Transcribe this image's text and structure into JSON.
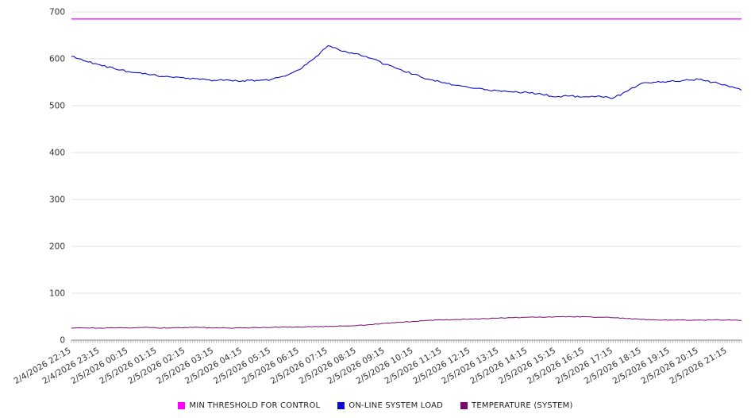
{
  "chart_data": {
    "type": "line",
    "title": "",
    "xlabel": "",
    "ylabel": "",
    "ylim": [
      0,
      700
    ],
    "yticks": [
      0,
      100,
      200,
      300,
      400,
      500,
      600,
      700
    ],
    "grid": true,
    "legend_position": "bottom",
    "background": "#ffffff",
    "axis": {
      "text_color": "#333333",
      "grid_color": "#e0e0e0",
      "tick_color": "#999999",
      "baseline_color": "#888888"
    },
    "sample_interval_minutes": 30,
    "x_tick_labels": [
      "2/4/2026 22:15",
      "2/4/2026 23:15",
      "2/5/2026 00:15",
      "2/5/2026 01:15",
      "2/5/2026 02:15",
      "2/5/2026 03:15",
      "2/5/2026 04:15",
      "2/5/2026 05:15",
      "2/5/2026 06:15",
      "2/5/2026 07:15",
      "2/5/2026 08:15",
      "2/5/2026 09:15",
      "2/5/2026 10:15",
      "2/5/2026 11:15",
      "2/5/2026 12:15",
      "2/5/2026 13:15",
      "2/5/2026 14:15",
      "2/5/2026 15:15",
      "2/5/2026 16:15",
      "2/5/2026 17:15",
      "2/5/2026 18:15",
      "2/5/2026 19:15",
      "2/5/2026 20:15",
      "2/5/2026 21:15"
    ],
    "series": [
      {
        "name": "MIN THRESHOLD FOR CONTROL",
        "color": "#ff00ff",
        "values": [
          685,
          685
        ]
      },
      {
        "name": "ON-LINE SYSTEM LOAD",
        "color": "#0b0bd0",
        "values": [
          605,
          595,
          587,
          579,
          573,
          568,
          564,
          561,
          558,
          556,
          554,
          555,
          553,
          554,
          556,
          563,
          577,
          600,
          628,
          616,
          611,
          601,
          588,
          578,
          567,
          557,
          549,
          543,
          538,
          534,
          532,
          529,
          528,
          524,
          519,
          521,
          519,
          521,
          516,
          531,
          548,
          550,
          552,
          554,
          556,
          550,
          543,
          533
        ]
      },
      {
        "name": "TEMPERATURE (SYSTEM)",
        "color": "#770a6e",
        "values": [
          26,
          26,
          26,
          26,
          26,
          27,
          26,
          26,
          27,
          27,
          26,
          26,
          26,
          27,
          27,
          28,
          28,
          29,
          29,
          30,
          31,
          33,
          36,
          38,
          40,
          42,
          43,
          44,
          45,
          46,
          47,
          48,
          49,
          49,
          50,
          50,
          50,
          49,
          48,
          46,
          44,
          43,
          43,
          43,
          43,
          43,
          43,
          42
        ]
      }
    ]
  }
}
